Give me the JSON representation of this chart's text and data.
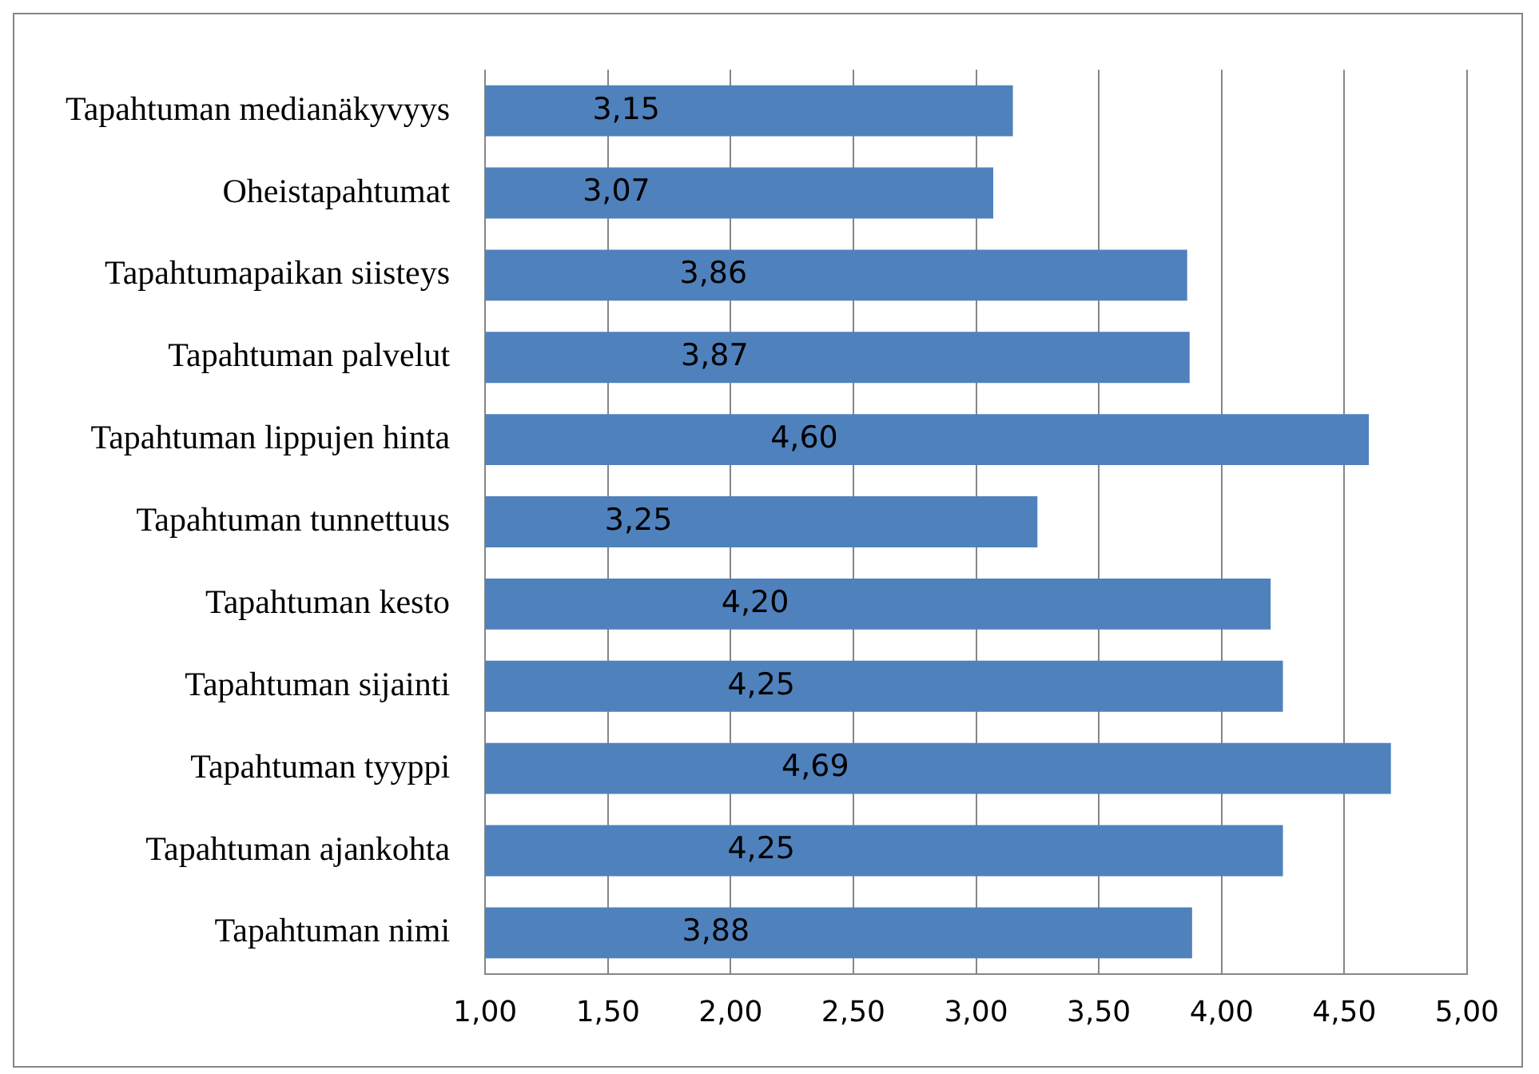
{
  "chart_data": {
    "type": "bar",
    "orientation": "horizontal",
    "categories": [
      "Tapahtuman medianäkyvyys",
      "Oheistapahtumat",
      "Tapahtumapaikan siisteys",
      "Tapahtuman palvelut",
      "Tapahtuman lippujen hinta",
      "Tapahtuman tunnettuus",
      "Tapahtuman kesto",
      "Tapahtuman sijainti",
      "Tapahtuman tyyppi",
      "Tapahtuman ajankohta",
      "Tapahtuman nimi"
    ],
    "values": [
      3.15,
      3.07,
      3.86,
      3.87,
      4.6,
      3.25,
      4.2,
      4.25,
      4.69,
      4.25,
      3.88
    ],
    "value_labels": [
      "3,15",
      "3,07",
      "3,86",
      "3,87",
      "4,60",
      "3,25",
      "4,20",
      "4,25",
      "4,69",
      "4,25",
      "3,88"
    ],
    "color": "#4f81bd",
    "xlim": [
      1,
      5
    ],
    "xticks": [
      {
        "value": 1,
        "label": "1,00"
      },
      {
        "value": 1.5,
        "label": "1,50"
      },
      {
        "value": 2,
        "label": "2,00"
      },
      {
        "value": 2.5,
        "label": "2,50"
      },
      {
        "value": 3,
        "label": "3,00"
      },
      {
        "value": 3.5,
        "label": "3,50"
      },
      {
        "value": 4,
        "label": "4,00"
      },
      {
        "value": 4.5,
        "label": "4,50"
      },
      {
        "value": 5,
        "label": "5,00"
      }
    ],
    "grid": "x"
  }
}
